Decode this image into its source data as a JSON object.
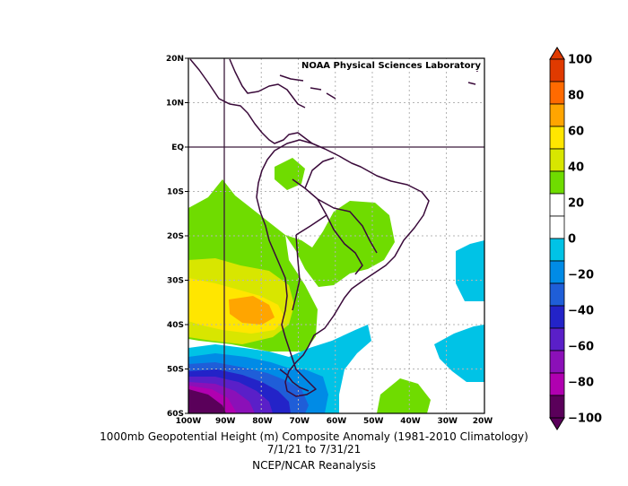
{
  "credit": "NOAA Physical Sciences Laboratory",
  "title_line1": "1000mb Geopotential Height (m) Composite Anomaly (1981-2010 Climatology)",
  "title_line2": "7/1/21 to 7/31/21",
  "source_line": "NCEP/NCAR Reanalysis",
  "lat_ticks": [
    "20N",
    "10N",
    "EQ",
    "10S",
    "20S",
    "30S",
    "40S",
    "50S",
    "60S"
  ],
  "lon_ticks": [
    "100W",
    "90W",
    "80W",
    "70W",
    "60W",
    "50W",
    "40W",
    "30W",
    "20W"
  ],
  "colorbar": {
    "labels": [
      "100",
      "80",
      "60",
      "40",
      "20",
      "0",
      "−20",
      "−40",
      "−60",
      "−80",
      "−100"
    ],
    "colors": [
      "#e03a00",
      "#ff6a00",
      "#ffa500",
      "#ffe600",
      "#d8e600",
      "#6fdc00",
      "#ffffff",
      "#ffffff",
      "#00c3e6",
      "#008be6",
      "#1f5ed8",
      "#2323c8",
      "#5a1fc8",
      "#8b10b8",
      "#b000b0",
      "#5a005a"
    ]
  },
  "chart_data": {
    "type": "heatmap",
    "x_range": [
      -100,
      -20
    ],
    "y_range": [
      -60,
      20
    ],
    "units": "m",
    "colorbar_range": [
      -100,
      100
    ]
  }
}
